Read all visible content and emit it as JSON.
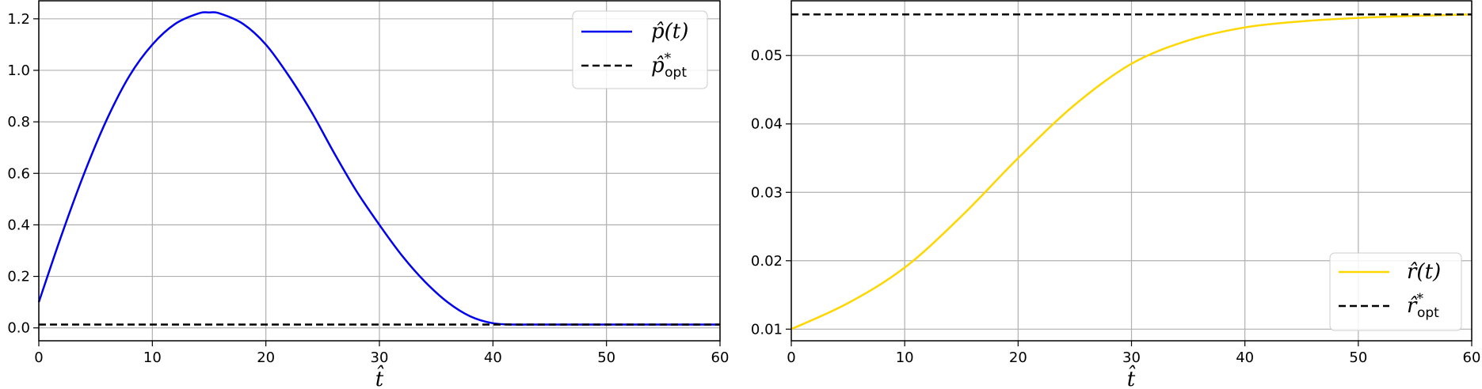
{
  "chart_data": [
    {
      "type": "line",
      "xlabel": "t̂",
      "xlim": [
        0,
        60
      ],
      "ylim": [
        -0.05,
        1.27
      ],
      "xticks": [
        "0",
        "10",
        "20",
        "30",
        "40",
        "50",
        "60"
      ],
      "yticks": [
        "0.0",
        "0.2",
        "0.4",
        "0.6",
        "0.8",
        "1.0",
        "1.2"
      ],
      "grid": true,
      "legend_position": "top-right",
      "series": [
        {
          "name": "p̂(t)",
          "style": "solid",
          "color": "#0000ee",
          "x": [
            0,
            2,
            4,
            6,
            8,
            10,
            12,
            14,
            15,
            16,
            18,
            20,
            22,
            24,
            26,
            28,
            30,
            32,
            34,
            36,
            38,
            40,
            42,
            44,
            50,
            60
          ],
          "y": [
            0.1,
            0.36,
            0.6,
            0.81,
            0.98,
            1.1,
            1.18,
            1.22,
            1.225,
            1.22,
            1.18,
            1.1,
            0.98,
            0.84,
            0.68,
            0.53,
            0.4,
            0.28,
            0.18,
            0.1,
            0.045,
            0.018,
            0.013,
            0.013,
            0.013,
            0.013
          ]
        },
        {
          "name": "p̂*opt",
          "style": "dashed",
          "color": "#000000",
          "x": [
            0,
            60
          ],
          "y": [
            0.013,
            0.013
          ]
        }
      ]
    },
    {
      "type": "line",
      "xlabel": "t̂",
      "xlim": [
        0,
        60
      ],
      "ylim": [
        0.0083,
        0.058
      ],
      "xticks": [
        "0",
        "10",
        "20",
        "30",
        "40",
        "50",
        "60"
      ],
      "yticks": [
        "0.01",
        "0.02",
        "0.03",
        "0.04",
        "0.05"
      ],
      "grid": true,
      "legend_position": "bottom-right",
      "series": [
        {
          "name": "r̂(t)",
          "style": "solid",
          "color": "#ffd700",
          "x": [
            0,
            5,
            10,
            15,
            20,
            25,
            30,
            35,
            40,
            45,
            50,
            55,
            60
          ],
          "y": [
            0.01,
            0.0138,
            0.019,
            0.0265,
            0.035,
            0.0428,
            0.0488,
            0.0522,
            0.0541,
            0.055,
            0.0555,
            0.0558,
            0.056
          ]
        },
        {
          "name": "r̂*opt",
          "style": "dashed",
          "color": "#000000",
          "x": [
            0,
            60
          ],
          "y": [
            0.056,
            0.056
          ]
        }
      ]
    }
  ]
}
